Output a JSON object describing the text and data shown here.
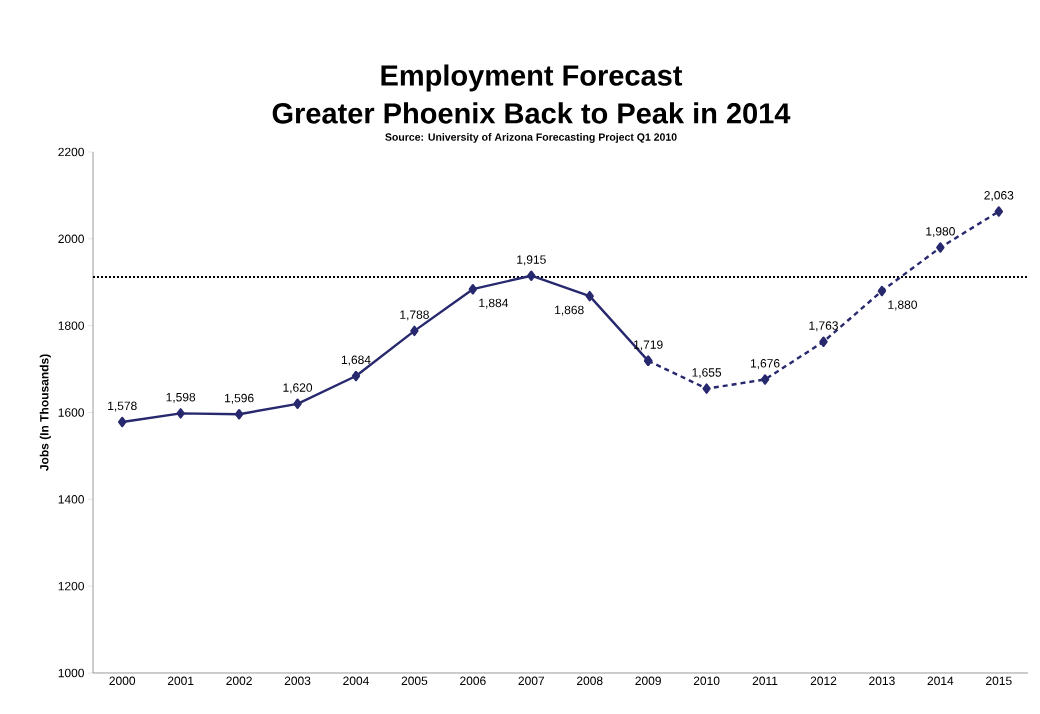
{
  "chart_data": {
    "type": "line",
    "title": "Employment Forecast",
    "subtitle": "Greater Phoenix Back to Peak in 2014",
    "annotations": [
      "Source: University of Arizona Forecasting Project Q1 2010"
    ],
    "ylabel": "Jobs (In Thousands)",
    "categories": [
      "2000",
      "2001",
      "2002",
      "2003",
      "2004",
      "2005",
      "2006",
      "2007",
      "2008",
      "2009",
      "2010",
      "2011",
      "2012",
      "2013",
      "2014",
      "2015"
    ],
    "series": [
      {
        "color": "#27286e",
        "line_style": "solid",
        "values": [
          1578,
          1598,
          1596,
          1620,
          1684,
          1788,
          1884,
          1915,
          1868,
          1719,
          null,
          null,
          null,
          null,
          null,
          null
        ],
        "value_labels": [
          "1,578",
          "1,598",
          "1,596",
          "1,620",
          "1,684",
          "1,788",
          "1,884",
          "1,915",
          "1,868",
          "1,719",
          null,
          null,
          null,
          null,
          null,
          null
        ]
      },
      {
        "color": "#27286e",
        "line_style": "dashed",
        "values": [
          null,
          null,
          null,
          null,
          null,
          null,
          null,
          null,
          null,
          1719,
          1655,
          1676,
          1763,
          1880,
          1980,
          2063
        ],
        "value_labels": [
          null,
          null,
          null,
          null,
          null,
          null,
          null,
          null,
          null,
          null,
          "1,655",
          "1,676",
          "1,763",
          "1,880",
          "1,980",
          "2,063"
        ]
      }
    ],
    "marker": "diamond",
    "ylim": [
      1000,
      2200
    ],
    "yticks": [
      1000,
      1200,
      1400,
      1600,
      1800,
      2000,
      2200
    ],
    "ref_lines": [
      {
        "axis": "y",
        "value": 1912,
        "color": "#000000",
        "line_style": "dotted"
      }
    ]
  }
}
